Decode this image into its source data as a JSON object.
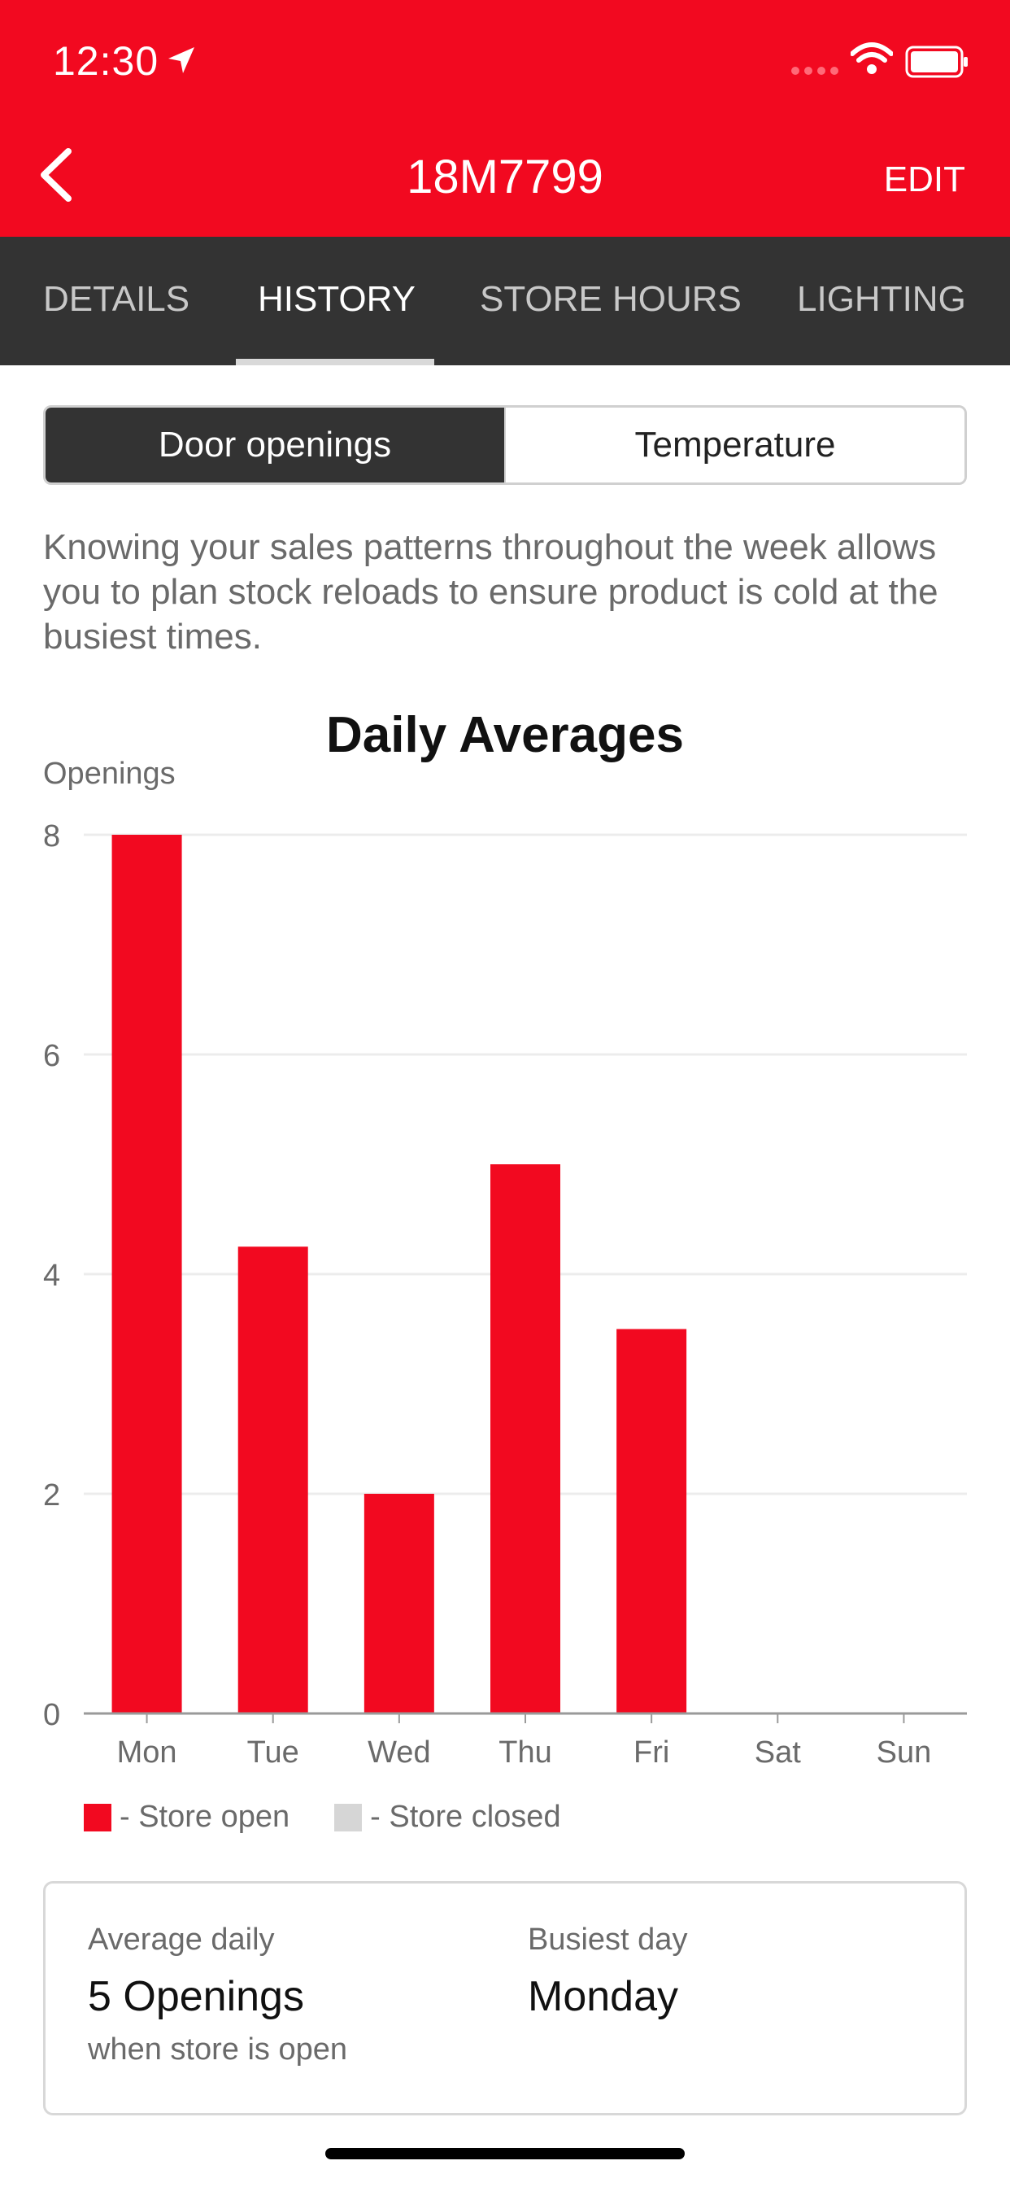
{
  "status": {
    "time": "12:30"
  },
  "nav": {
    "title": "18M7799",
    "edit_label": "EDIT"
  },
  "tabs": [
    "DETAILS",
    "HISTORY",
    "STORE HOURS",
    "LIGHTING"
  ],
  "active_tab": "HISTORY",
  "segments": {
    "door": "Door openings",
    "temperature": "Temperature",
    "active": "Door openings"
  },
  "description": "Knowing your sales patterns throughout the week allows you to plan stock reloads to ensure product is cold at the busiest times.",
  "colors": {
    "brand_red": "#f20920",
    "dark_bar": "#333333",
    "closed_gray": "#d6d6d6"
  },
  "chart_data": {
    "type": "bar",
    "title": "Daily Averages",
    "ylabel": "Openings",
    "xlabel": "",
    "categories": [
      "Mon",
      "Tue",
      "Wed",
      "Thu",
      "Fri",
      "Sat",
      "Sun"
    ],
    "values": [
      8,
      4.25,
      2,
      5,
      3.5,
      0,
      0
    ],
    "ylim": [
      0,
      8
    ],
    "yticks": [
      0,
      2,
      4,
      6,
      8
    ],
    "grid": true,
    "legend": [
      {
        "label": "- Store open",
        "color": "#f20920"
      },
      {
        "label": "- Store closed",
        "color": "#d6d6d6"
      }
    ],
    "legend_placement": "bottom-left"
  },
  "summary": {
    "avg_label": "Average daily",
    "avg_value": "5 Openings",
    "avg_note": "when store is open",
    "busiest_label": "Busiest day",
    "busiest_value": "Monday"
  }
}
